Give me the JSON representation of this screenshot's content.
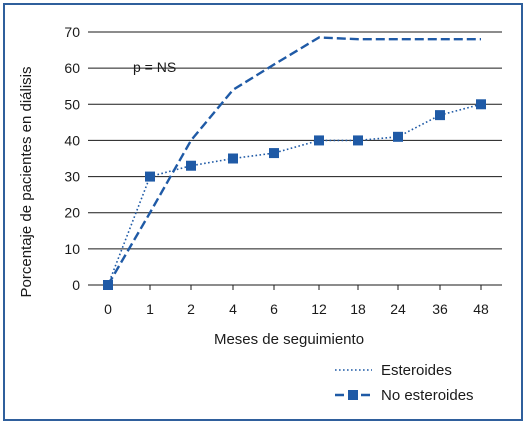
{
  "chart_data": {
    "type": "line",
    "categories": [
      "0",
      "1",
      "2",
      "4",
      "6",
      "12",
      "18",
      "24",
      "36",
      "48"
    ],
    "series": [
      {
        "name": "Esteroides",
        "style": "dotted",
        "markers": true,
        "color": "#1f5aa6",
        "values": [
          0,
          30,
          33,
          35,
          36.5,
          40,
          40,
          41,
          47,
          50
        ]
      },
      {
        "name": "No esteroides",
        "style": "dashed",
        "markers": false,
        "color": "#1f5aa6",
        "values": [
          0,
          20,
          40,
          54,
          61,
          68.5,
          68,
          68,
          68,
          68
        ]
      }
    ],
    "xlabel": "Meses de seguimiento",
    "ylabel": "Porcentaje de pacientes en diálisis",
    "ylim": [
      0,
      70
    ],
    "yticks": [
      0,
      10,
      20,
      30,
      40,
      50,
      60,
      70
    ],
    "grid": "horizontal",
    "annotation": "p = NS",
    "legend_position": "bottom-right"
  }
}
